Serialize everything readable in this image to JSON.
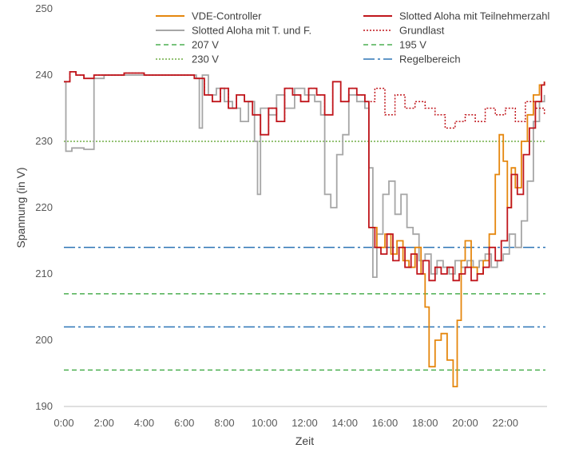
{
  "chart_data": {
    "type": "line",
    "title": "",
    "xlabel": "Zeit",
    "ylabel": "Spannung (in V)",
    "ylim": [
      190,
      250
    ],
    "yticks": [
      190,
      200,
      210,
      220,
      230,
      240,
      250
    ],
    "xlim": [
      0,
      24
    ],
    "xticks": [
      0,
      2,
      4,
      6,
      8,
      10,
      12,
      14,
      16,
      18,
      20,
      22
    ],
    "xtick_labels": [
      "0:00",
      "2:00",
      "4:00",
      "6:00",
      "8:00",
      "10:00",
      "12:00",
      "14:00",
      "16:00",
      "18:00",
      "20:00",
      "22:00"
    ],
    "grid": false,
    "legend_position": "top",
    "series": [
      {
        "name": "VDE-Controller",
        "color": "#E5870E",
        "style": "solid",
        "x": [
          15.2,
          15.6,
          16.0,
          16.3,
          16.6,
          16.9,
          17.2,
          17.5,
          17.8,
          18.0,
          18.2,
          18.5,
          18.8,
          19.1,
          19.4,
          19.6,
          19.8,
          20.0,
          20.3,
          20.6,
          20.9,
          21.2,
          21.5,
          21.7,
          21.9,
          22.1,
          22.3,
          22.5,
          22.8,
          23.1,
          23.4,
          23.7,
          23.95
        ],
        "y": [
          217,
          214,
          216,
          213,
          215,
          212,
          211,
          214,
          210,
          205,
          196,
          200,
          201,
          197,
          193,
          203,
          212,
          215,
          211,
          210,
          212,
          216,
          225,
          231,
          227,
          220,
          226,
          223,
          230,
          234,
          237,
          238.5,
          239
        ]
      },
      {
        "name": "Slotted Aloha mit Teilnehmerzahl",
        "color": "#C0161C",
        "style": "solid",
        "x": [
          0.0,
          0.3,
          0.6,
          1.0,
          1.5,
          2.0,
          3.0,
          4.0,
          5.0,
          6.0,
          6.5,
          7.0,
          7.4,
          7.8,
          8.2,
          8.6,
          9.0,
          9.4,
          9.8,
          10.2,
          10.6,
          11.0,
          11.4,
          11.8,
          12.2,
          12.6,
          13.0,
          13.4,
          13.8,
          14.2,
          14.6,
          15.0,
          15.2,
          15.5,
          15.8,
          16.1,
          16.4,
          16.7,
          17.0,
          17.3,
          17.6,
          17.9,
          18.2,
          18.5,
          18.8,
          19.1,
          19.4,
          19.7,
          20.0,
          20.3,
          20.6,
          20.9,
          21.2,
          21.5,
          21.8,
          22.1,
          22.3,
          22.6,
          22.9,
          23.2,
          23.5,
          23.8,
          23.95
        ],
        "y": [
          239,
          240.5,
          240,
          239.5,
          240,
          240,
          240.3,
          240,
          240,
          240,
          239.5,
          237,
          236,
          238,
          235,
          237,
          236,
          234,
          231,
          235,
          233,
          238,
          237,
          236,
          238,
          237,
          234,
          239,
          236,
          238,
          237,
          236,
          217,
          214,
          213,
          216,
          212,
          214,
          211,
          213,
          210,
          212,
          209,
          211,
          210,
          211,
          209,
          210,
          211,
          209,
          210,
          211,
          214,
          212,
          215,
          220,
          225,
          222,
          228,
          232,
          236,
          238.5,
          239
        ]
      },
      {
        "name": "Slotted Aloha mit T. und F.",
        "color": "#A6A6A6",
        "style": "solid",
        "x": [
          0.0,
          0.1,
          0.4,
          0.7,
          1.0,
          1.2,
          1.5,
          2.0,
          3.0,
          4.0,
          5.0,
          6.0,
          6.6,
          6.75,
          6.9,
          7.2,
          7.6,
          8.0,
          8.4,
          8.8,
          9.2,
          9.5,
          9.65,
          9.8,
          10.2,
          10.6,
          11.0,
          11.5,
          12.0,
          12.5,
          12.8,
          13.0,
          13.3,
          13.6,
          13.9,
          14.2,
          14.6,
          15.0,
          15.2,
          15.4,
          15.6,
          15.9,
          16.2,
          16.5,
          16.8,
          17.1,
          17.4,
          17.7,
          18.0,
          18.3,
          18.6,
          18.9,
          19.2,
          19.5,
          19.8,
          20.1,
          20.4,
          20.7,
          21.0,
          21.3,
          21.6,
          21.9,
          22.2,
          22.5,
          22.8,
          23.1,
          23.4,
          23.7,
          23.95
        ],
        "y": [
          239,
          228.5,
          229,
          229,
          228.8,
          228.8,
          239.5,
          240,
          240,
          240,
          240,
          240,
          239.5,
          232,
          240,
          237,
          238,
          236,
          235,
          233,
          236,
          230,
          222,
          235,
          234,
          237,
          235,
          238,
          237,
          236,
          234,
          222,
          220,
          228,
          231,
          237,
          236,
          235,
          226,
          209.5,
          216,
          222,
          224,
          219,
          222,
          217,
          216,
          212,
          213,
          210,
          212,
          211,
          210,
          212,
          211,
          212,
          211,
          212,
          213,
          211,
          212,
          213,
          216,
          214,
          218,
          224,
          233,
          236,
          237
        ]
      },
      {
        "name": "Grundlast",
        "color": "#C0161C",
        "style": "dotted",
        "x": [
          0.0,
          0.3,
          0.6,
          1.0,
          1.5,
          2.0,
          3.0,
          4.0,
          5.0,
          6.0,
          6.5,
          7.0,
          7.4,
          7.8,
          8.2,
          8.6,
          9.0,
          9.4,
          9.8,
          10.2,
          10.6,
          11.0,
          11.4,
          11.8,
          12.2,
          12.6,
          13.0,
          13.4,
          13.8,
          14.2,
          14.6,
          15.0,
          15.5,
          16.0,
          16.5,
          17.0,
          17.5,
          18.0,
          18.5,
          19.0,
          19.5,
          20.0,
          20.5,
          21.0,
          21.5,
          22.0,
          22.5,
          23.0,
          23.5,
          23.95
        ],
        "y": [
          239,
          240.5,
          240,
          239.5,
          240,
          240,
          240.3,
          240,
          240,
          240,
          239.5,
          237,
          236,
          238,
          235,
          237,
          236,
          234,
          231,
          235,
          233,
          238,
          237,
          236,
          238,
          237,
          234,
          239,
          236,
          238,
          237,
          236,
          238,
          234,
          237,
          235,
          236,
          235,
          234,
          232,
          233,
          234,
          233,
          235,
          234,
          235,
          233,
          236,
          235,
          234
        ]
      },
      {
        "name": "207 V",
        "color": "#4CAF50",
        "style": "dashed",
        "x": [
          0,
          24
        ],
        "y": [
          207,
          207
        ]
      },
      {
        "name": "195 V",
        "color": "#4CAF50",
        "style": "dashed",
        "x": [
          0,
          24
        ],
        "y": [
          195.5,
          195.5
        ]
      },
      {
        "name": "230 V",
        "color": "#70AD47",
        "style": "dotted",
        "x": [
          0,
          24
        ],
        "y": [
          230,
          230
        ]
      },
      {
        "name": "Regelbereich",
        "color": "#2E75B6",
        "style": "dashdot",
        "x": [
          0,
          24
        ],
        "y": [
          214,
          214
        ],
        "y_lower": 202
      }
    ]
  }
}
